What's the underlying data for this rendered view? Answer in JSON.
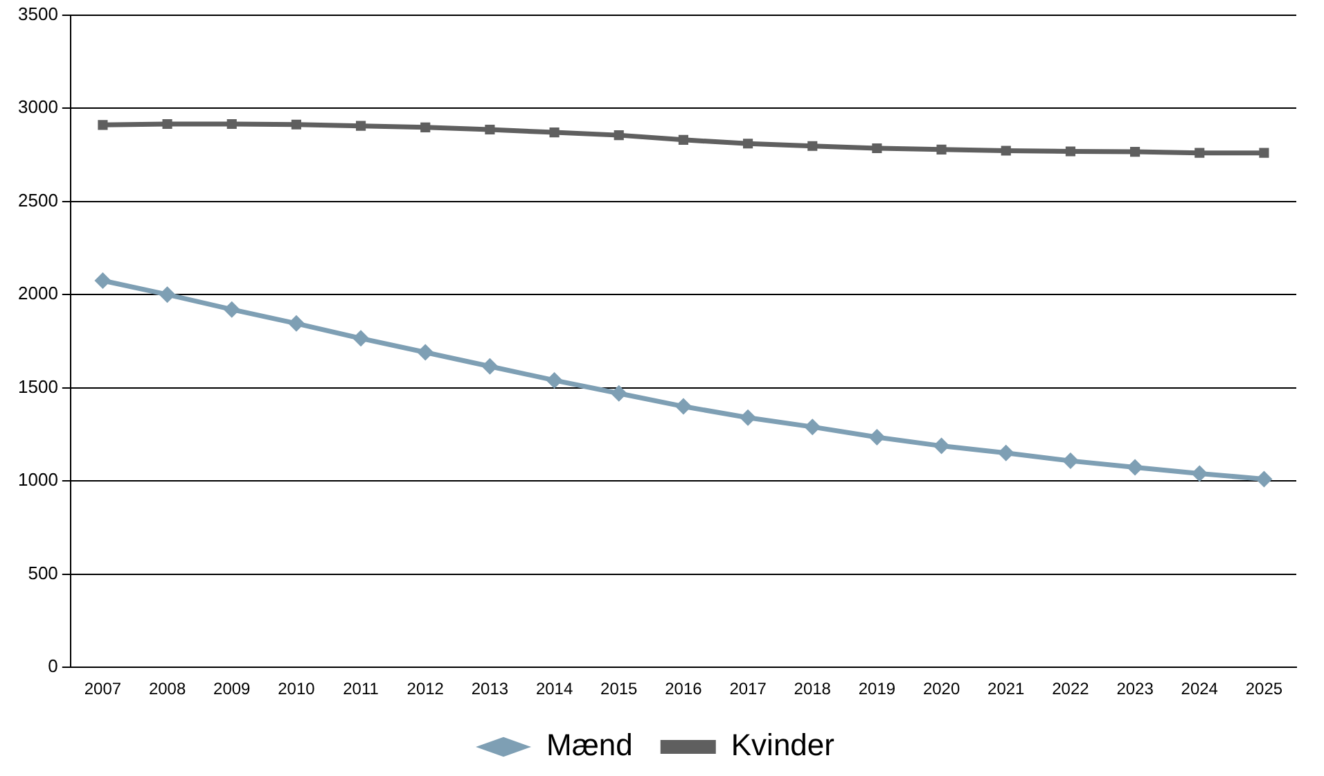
{
  "chart_data": {
    "type": "line",
    "categories": [
      "2007",
      "2008",
      "2009",
      "2010",
      "2011",
      "2012",
      "2013",
      "2014",
      "2015",
      "2016",
      "2017",
      "2018",
      "2019",
      "2020",
      "2021",
      "2022",
      "2023",
      "2024",
      "2025"
    ],
    "series": [
      {
        "name": "Mænd",
        "color": "#7e9fb4",
        "marker": "diamond",
        "values": [
          2075,
          2000,
          1920,
          1845,
          1765,
          1690,
          1615,
          1540,
          1470,
          1400,
          1340,
          1290,
          1235,
          1188,
          1150,
          1108,
          1073,
          1040,
          1010
        ]
      },
      {
        "name": "Kvinder",
        "color": "#5f5f5f",
        "marker": "square",
        "values": [
          2910,
          2915,
          2915,
          2912,
          2905,
          2897,
          2885,
          2870,
          2855,
          2830,
          2810,
          2797,
          2785,
          2778,
          2772,
          2768,
          2766,
          2760,
          2760
        ]
      }
    ],
    "ylim": [
      0,
      3500
    ],
    "yticks": [
      0,
      500,
      1000,
      1500,
      2000,
      2500,
      3000,
      3500
    ],
    "grid": "y",
    "legend": "bottom",
    "line_style": "solid"
  }
}
